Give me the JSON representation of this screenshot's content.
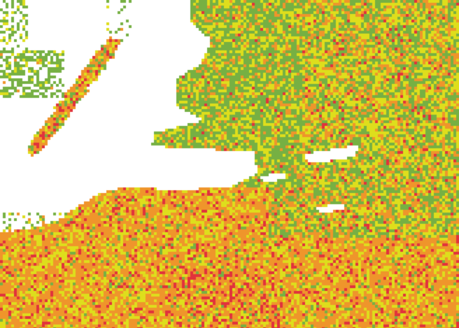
{
  "map": {
    "background_color": "#ffffff",
    "classes": [
      {
        "key": "green",
        "color": "#76b043"
      },
      {
        "key": "yellow",
        "color": "#dede1c"
      },
      {
        "key": "orange",
        "color": "#ef952b"
      },
      {
        "key": "red",
        "color": "#e1323c"
      }
    ]
  }
}
